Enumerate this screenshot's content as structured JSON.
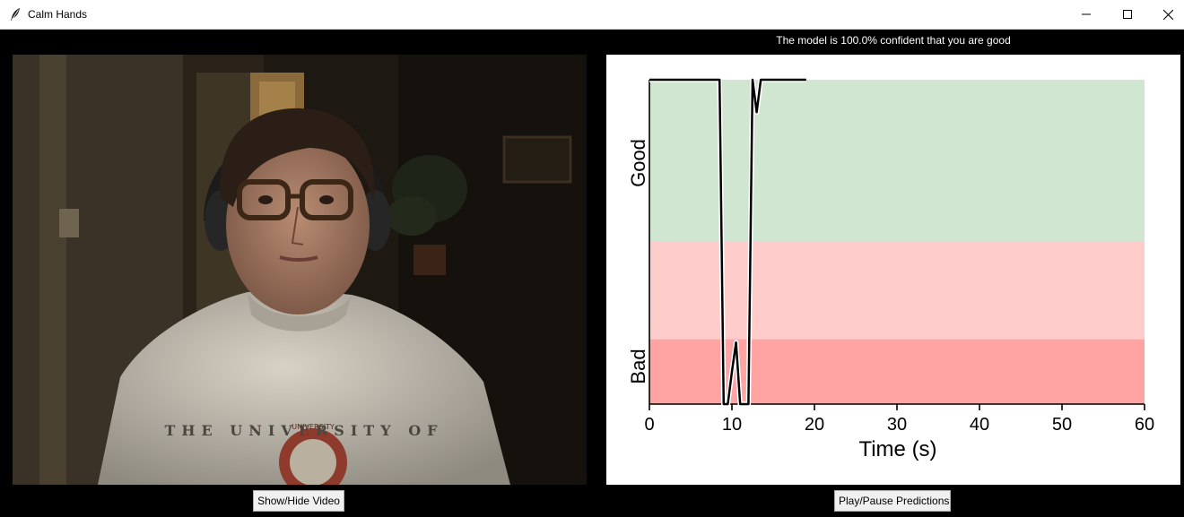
{
  "window": {
    "title": "Calm Hands"
  },
  "status_text": "The model is 100.0% confident that you are good",
  "video": {
    "sweatshirt_text": "THE UNIVERSITY OF"
  },
  "buttons": {
    "show_hide_video": "Show/Hide Video",
    "play_pause": "Play/Pause Predictions"
  },
  "colors": {
    "good_band": "#d0e6d0",
    "neutral_band": "#ffcccc",
    "bad_band": "#ffa3a3",
    "line": "#000000"
  },
  "chart_data": {
    "type": "line",
    "xlabel": "Time (s)",
    "ylabel_top": "Good",
    "ylabel_bottom": "Bad",
    "xlim": [
      0,
      60
    ],
    "ylim": [
      0,
      1
    ],
    "xticks": [
      0,
      10,
      20,
      30,
      40,
      50,
      60
    ],
    "bands": [
      {
        "label": "good",
        "from": 0.5,
        "to": 1.0
      },
      {
        "label": "neutral",
        "from": 0.2,
        "to": 0.5
      },
      {
        "label": "bad",
        "from": 0.0,
        "to": 0.2
      }
    ],
    "series": [
      {
        "x": [
          0,
          8.5,
          9.0,
          9.5,
          10.0,
          10.5,
          11.0,
          11.5,
          12.0,
          12.5,
          13.0,
          13.5,
          14.0,
          19.0
        ],
        "y": [
          1.0,
          1.0,
          0.0,
          0.0,
          0.1,
          0.19,
          0.0,
          0.0,
          0.0,
          1.0,
          0.9,
          1.0,
          1.0,
          1.0
        ]
      }
    ]
  }
}
